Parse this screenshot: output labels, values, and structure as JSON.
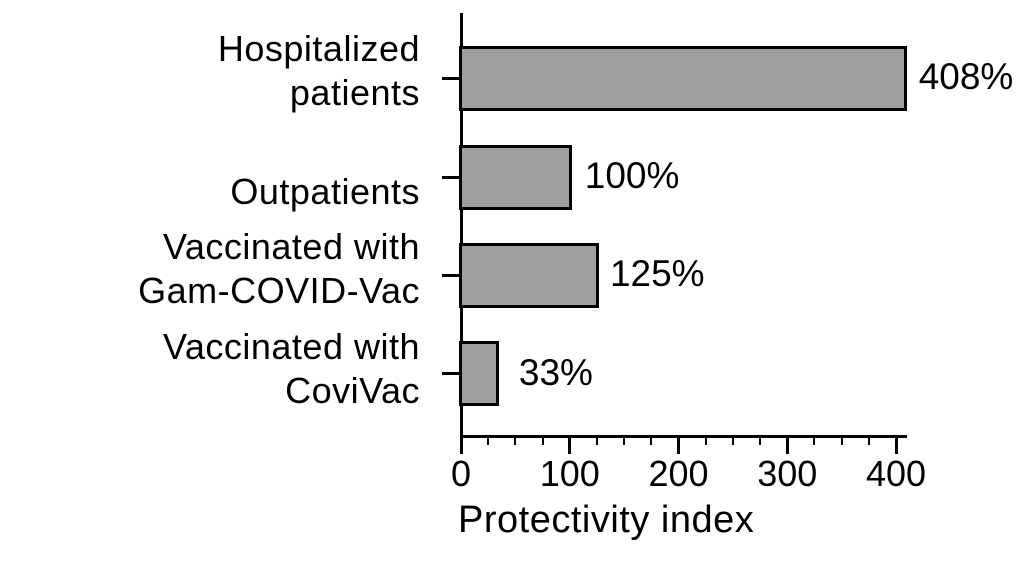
{
  "chart_data": {
    "type": "bar",
    "orientation": "horizontal",
    "title": "",
    "xlabel": "Protectivity index",
    "ylabel": "",
    "categories": [
      "Hospitalized patients",
      "Outpatients",
      "Vaccinated with Gam-COVID-Vac",
      "Vaccinated with CoviVac"
    ],
    "category_lines": [
      [
        "Hospitalized",
        "patients"
      ],
      [
        "Outpatients"
      ],
      [
        "Vaccinated with",
        "Gam-COVID-Vac"
      ],
      [
        "Vaccinated with",
        "CoviVac"
      ]
    ],
    "values": [
      408,
      100,
      125,
      33
    ],
    "value_labels": [
      "408%",
      "100%",
      "125%",
      "33%"
    ],
    "unit": "%",
    "xlim": [
      0,
      410
    ],
    "x_major_ticks": [
      0,
      100,
      200,
      300,
      400
    ],
    "x_tick_labels": [
      "0",
      "100",
      "200",
      "300",
      "400"
    ],
    "x_minor_tick_step": 25,
    "grid": false,
    "legend_position": "none",
    "colors": {
      "bar_fill": "#9e9e9e",
      "bar_border": "#000000",
      "axis": "#000000",
      "text": "#000000",
      "background": "#ffffff"
    }
  }
}
